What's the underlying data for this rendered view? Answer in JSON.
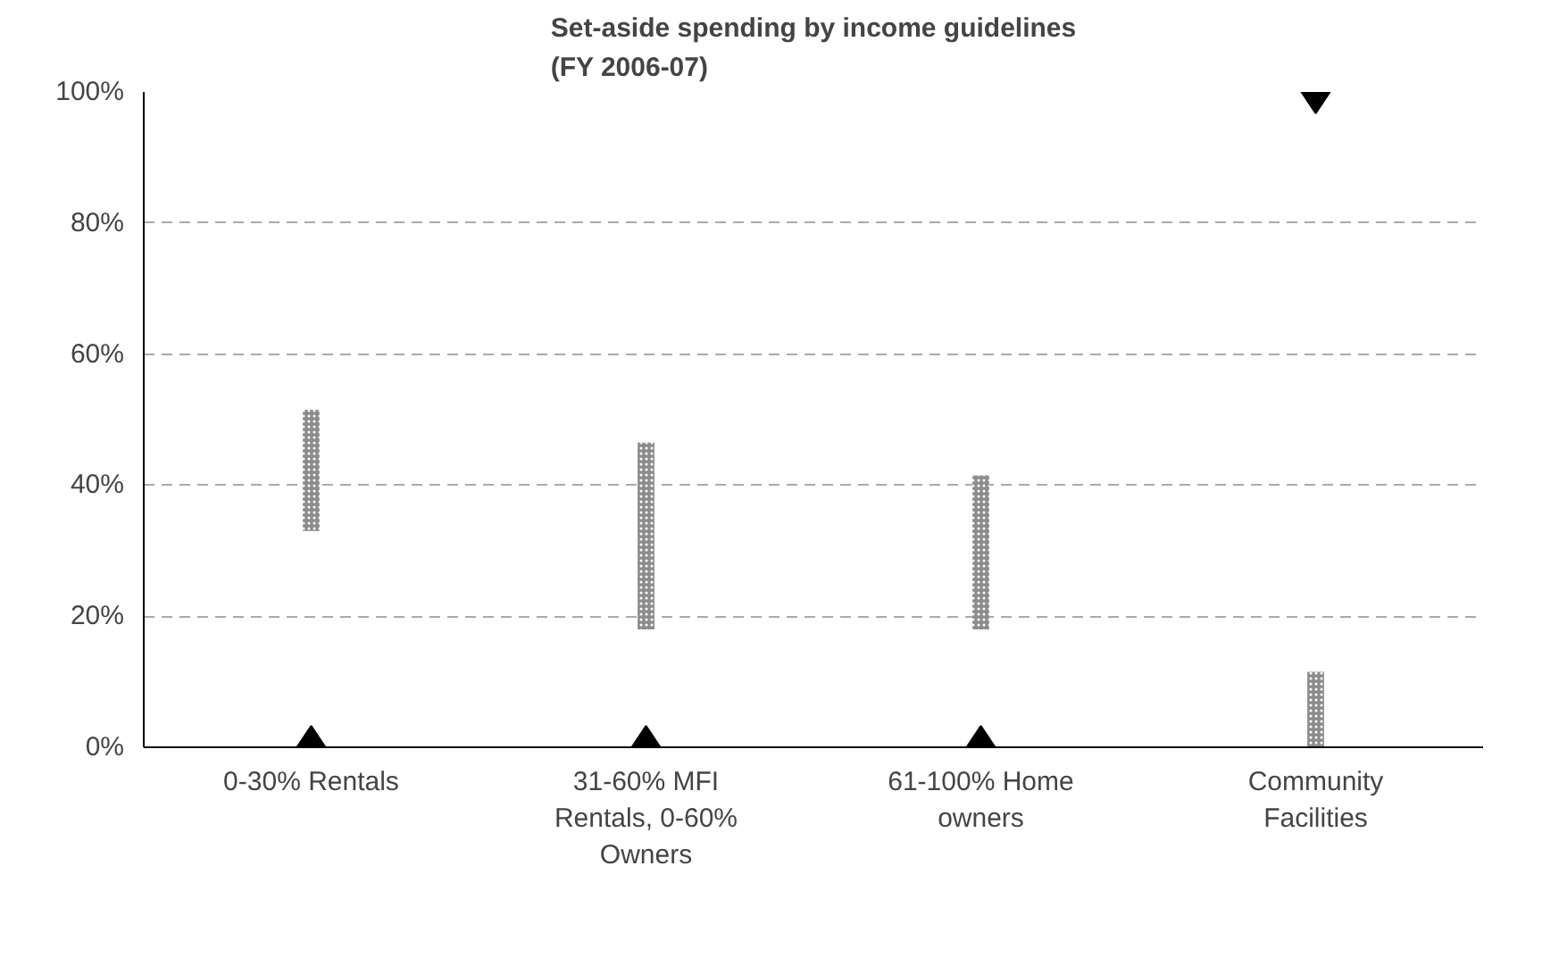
{
  "chart_data": {
    "type": "bar",
    "title": "Set-aside spending by income guidelines\n(FY 2006-07)",
    "categories": [
      "0-30% Rentals",
      "31-60% MFI Rentals, 0-60% Owners",
      "61-100% Home owners",
      "Community Facilities"
    ],
    "series": [
      {
        "color": "#8c8c8c",
        "values": [
          18.5,
          28.5,
          23.5,
          11.5
        ],
        "base": [
          33,
          18,
          18,
          0
        ]
      },
      {
        "type": "scatter",
        "color": "#000000",
        "marker": "diamond",
        "values": [
          0,
          0,
          0,
          100
        ]
      }
    ],
    "ylim": [
      0,
      100
    ],
    "yticks": [
      {
        "value": 0,
        "label": "0%"
      },
      {
        "value": 20,
        "label": "20%"
      },
      {
        "value": 40,
        "label": "40%"
      },
      {
        "value": 60,
        "label": "60%"
      },
      {
        "value": 80,
        "label": "80%"
      },
      {
        "value": 100,
        "label": "100%"
      }
    ],
    "grid": "y"
  }
}
